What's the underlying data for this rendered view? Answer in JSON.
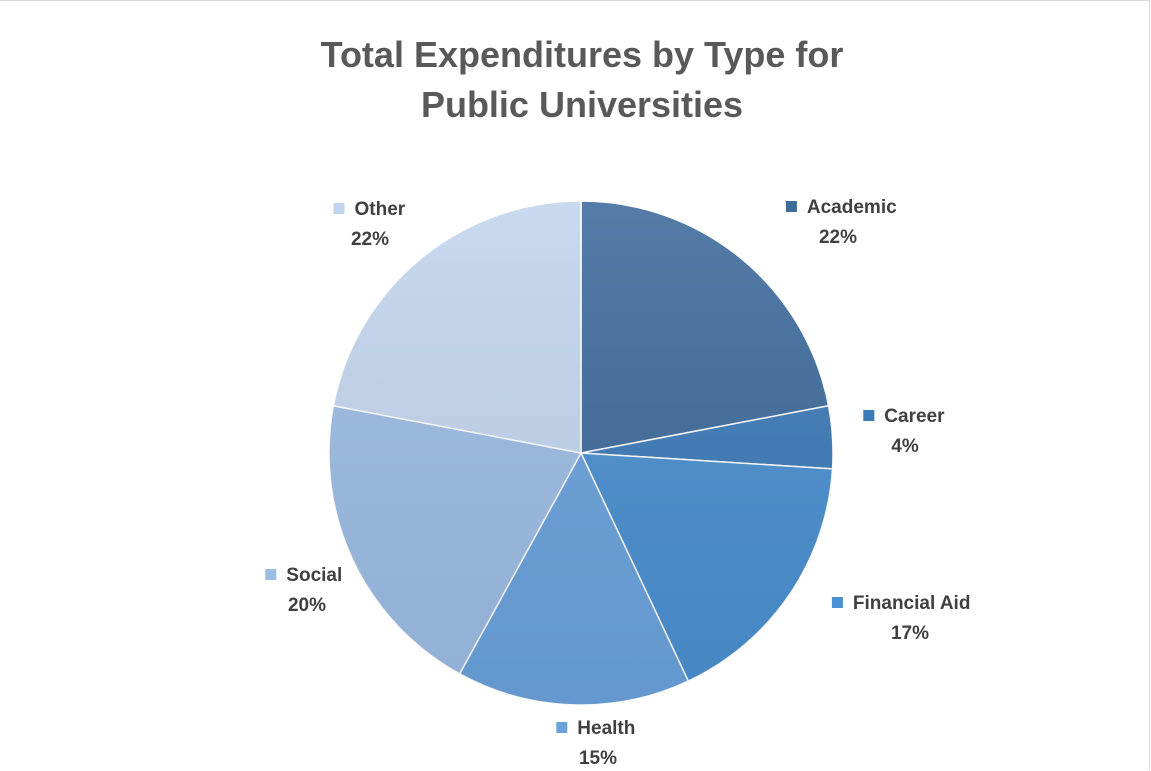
{
  "chart_data": {
    "type": "pie",
    "title_lines": [
      "Total Expenditures by Type for",
      "Public Universities"
    ],
    "slices": [
      {
        "name": "Academic",
        "value": 22,
        "label": "22%",
        "color": "#3e6b9c"
      },
      {
        "name": "Career",
        "value": 4,
        "label": "4%",
        "color": "#3d7ab8"
      },
      {
        "name": "Financial Aid",
        "value": 17,
        "label": "17%",
        "color": "#4a8fd0"
      },
      {
        "name": "Health",
        "value": 15,
        "label": "15%",
        "color": "#6aa2dc"
      },
      {
        "name": "Social",
        "value": 20,
        "label": "20%",
        "color": "#9cbce4"
      },
      {
        "name": "Other",
        "value": 22,
        "label": "22%",
        "color": "#c2d5ee"
      }
    ],
    "legend": "data-labels"
  }
}
